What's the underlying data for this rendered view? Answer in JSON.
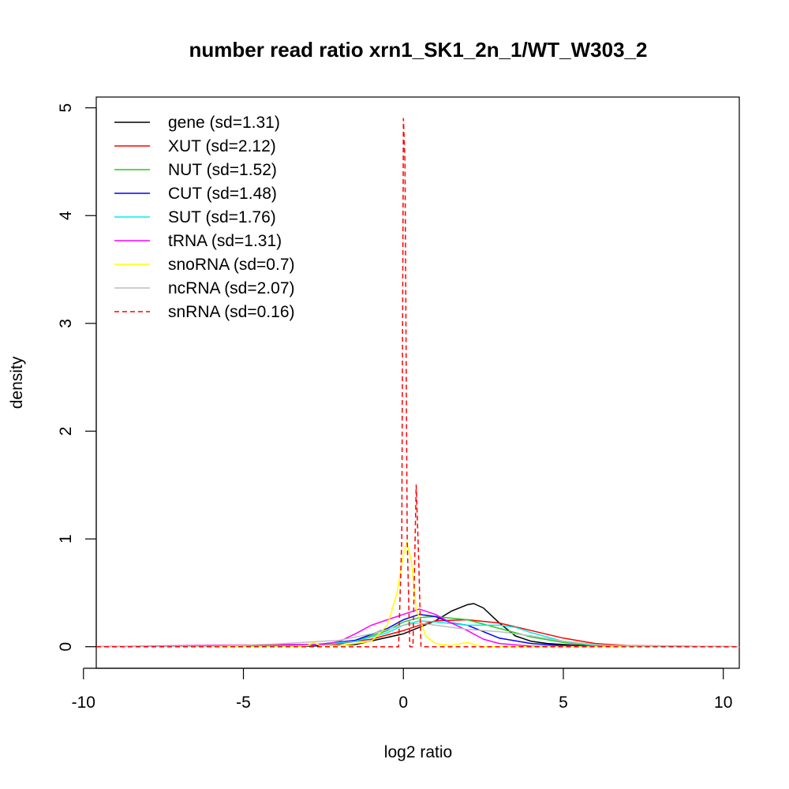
{
  "chart_data": {
    "type": "line",
    "title": "number read ratio xrn1_SK1_2n_1/WT_W303_2",
    "xlabel": "log2 ratio",
    "ylabel": "density",
    "xlim": [
      -9.6,
      10.5
    ],
    "ylim": [
      -0.2,
      5.1
    ],
    "xticks": [
      -10,
      -5,
      0,
      5,
      10
    ],
    "xtick_labels": [
      "-10",
      "-5",
      "0",
      "5",
      "10"
    ],
    "yticks": [
      0,
      1,
      2,
      3,
      4,
      5
    ],
    "ytick_labels": [
      "0",
      "1",
      "2",
      "3",
      "4",
      "5"
    ],
    "grid": false,
    "legend_position": "top-left",
    "series": [
      {
        "name": "gene (sd=1.31)",
        "color": "#000000",
        "dashed": false,
        "x": [
          -9.6,
          -5,
          -3,
          -1.5,
          0,
          0.5,
          1,
          1.5,
          2,
          2.2,
          2.5,
          3,
          3.5,
          4,
          4.5,
          5,
          6,
          7,
          10.5
        ],
        "y": [
          0,
          0,
          0.005,
          0.02,
          0.12,
          0.18,
          0.24,
          0.33,
          0.39,
          0.4,
          0.36,
          0.22,
          0.1,
          0.05,
          0.03,
          0.02,
          0.005,
          0,
          0
        ]
      },
      {
        "name": "XUT (sd=2.12)",
        "color": "#ff0000",
        "dashed": false,
        "x": [
          -9.6,
          -6,
          -4,
          -2,
          -1,
          0,
          0.5,
          1,
          2,
          3,
          4,
          5,
          6,
          7,
          10.5
        ],
        "y": [
          0,
          0.003,
          0.01,
          0.03,
          0.07,
          0.15,
          0.2,
          0.24,
          0.25,
          0.22,
          0.15,
          0.08,
          0.03,
          0.01,
          0
        ]
      },
      {
        "name": "NUT (sd=1.52)",
        "color": "#22cc22",
        "dashed": false,
        "x": [
          -9.6,
          -5,
          -3,
          -1.5,
          -0.5,
          0,
          0.5,
          1,
          2,
          3,
          4,
          5,
          6,
          10.5
        ],
        "y": [
          0,
          0.005,
          0.01,
          0.05,
          0.15,
          0.23,
          0.27,
          0.28,
          0.25,
          0.17,
          0.09,
          0.04,
          0.01,
          0
        ]
      },
      {
        "name": "CUT (sd=1.48)",
        "color": "#0000ff",
        "dashed": false,
        "x": [
          -9.6,
          -5,
          -3,
          -1.5,
          -0.5,
          0,
          0.5,
          1,
          1.5,
          2,
          2.5,
          3,
          4,
          5,
          6,
          10.5
        ],
        "y": [
          0,
          0.003,
          0.01,
          0.06,
          0.17,
          0.25,
          0.3,
          0.28,
          0.22,
          0.2,
          0.14,
          0.08,
          0.03,
          0.01,
          0.003,
          0
        ]
      },
      {
        "name": "SUT (sd=1.76)",
        "color": "#00eeee",
        "dashed": false,
        "x": [
          -9.6,
          -5,
          -3,
          -1.5,
          -0.5,
          0,
          0.5,
          1,
          2,
          3,
          3.5,
          4,
          5,
          6,
          10.5
        ],
        "y": [
          0,
          0.003,
          0.01,
          0.05,
          0.13,
          0.2,
          0.24,
          0.23,
          0.2,
          0.2,
          0.18,
          0.13,
          0.05,
          0.01,
          0
        ]
      },
      {
        "name": "tRNA (sd=1.31)",
        "color": "#ff00ff",
        "dashed": false,
        "x": [
          -9.6,
          -4,
          -3,
          -2.5,
          -2,
          -1.5,
          -1,
          -0.5,
          0,
          0.5,
          1,
          1.5,
          2,
          2.5,
          3,
          4,
          10.5
        ],
        "y": [
          0,
          0.02,
          0.02,
          0.02,
          0.05,
          0.12,
          0.2,
          0.25,
          0.3,
          0.35,
          0.3,
          0.22,
          0.15,
          0.07,
          0.03,
          0.005,
          0
        ]
      },
      {
        "name": "snoRNA (sd=0.7)",
        "color": "#ffff00",
        "dashed": false,
        "x": [
          -9.6,
          -3.5,
          -3,
          -2.8,
          -2.6,
          -2,
          -1,
          -0.5,
          -0.2,
          0,
          0.1,
          0.25,
          0.4,
          0.7,
          1,
          1.5,
          1.8,
          2,
          2.2,
          2.5,
          10.5
        ],
        "y": [
          0,
          0,
          0.01,
          0.04,
          0.01,
          0.01,
          0.05,
          0.2,
          0.5,
          0.85,
          0.97,
          0.8,
          0.35,
          0.1,
          0.03,
          0.01,
          0.03,
          0.04,
          0.02,
          0,
          0
        ]
      },
      {
        "name": "ncRNA (sd=2.07)",
        "color": "#bebebe",
        "dashed": false,
        "x": [
          -9.6,
          -6,
          -4,
          -2,
          -1,
          0,
          0.5,
          1,
          2,
          3,
          4,
          5,
          6,
          7,
          10.5
        ],
        "y": [
          0,
          0.005,
          0.025,
          0.06,
          0.12,
          0.2,
          0.22,
          0.2,
          0.16,
          0.14,
          0.1,
          0.05,
          0.02,
          0.005,
          0
        ]
      },
      {
        "name": "snRNA (sd=0.16)",
        "color": "#ff0000",
        "dashed": true,
        "x": [
          -9.6,
          -0.15,
          -0.05,
          0,
          0.05,
          0.12,
          0.2,
          0.3,
          0.4,
          0.48,
          0.55,
          10.5
        ],
        "y": [
          0,
          0,
          1.0,
          4.9,
          4.5,
          1.0,
          0,
          0,
          1.5,
          0.8,
          0,
          0
        ]
      }
    ]
  }
}
